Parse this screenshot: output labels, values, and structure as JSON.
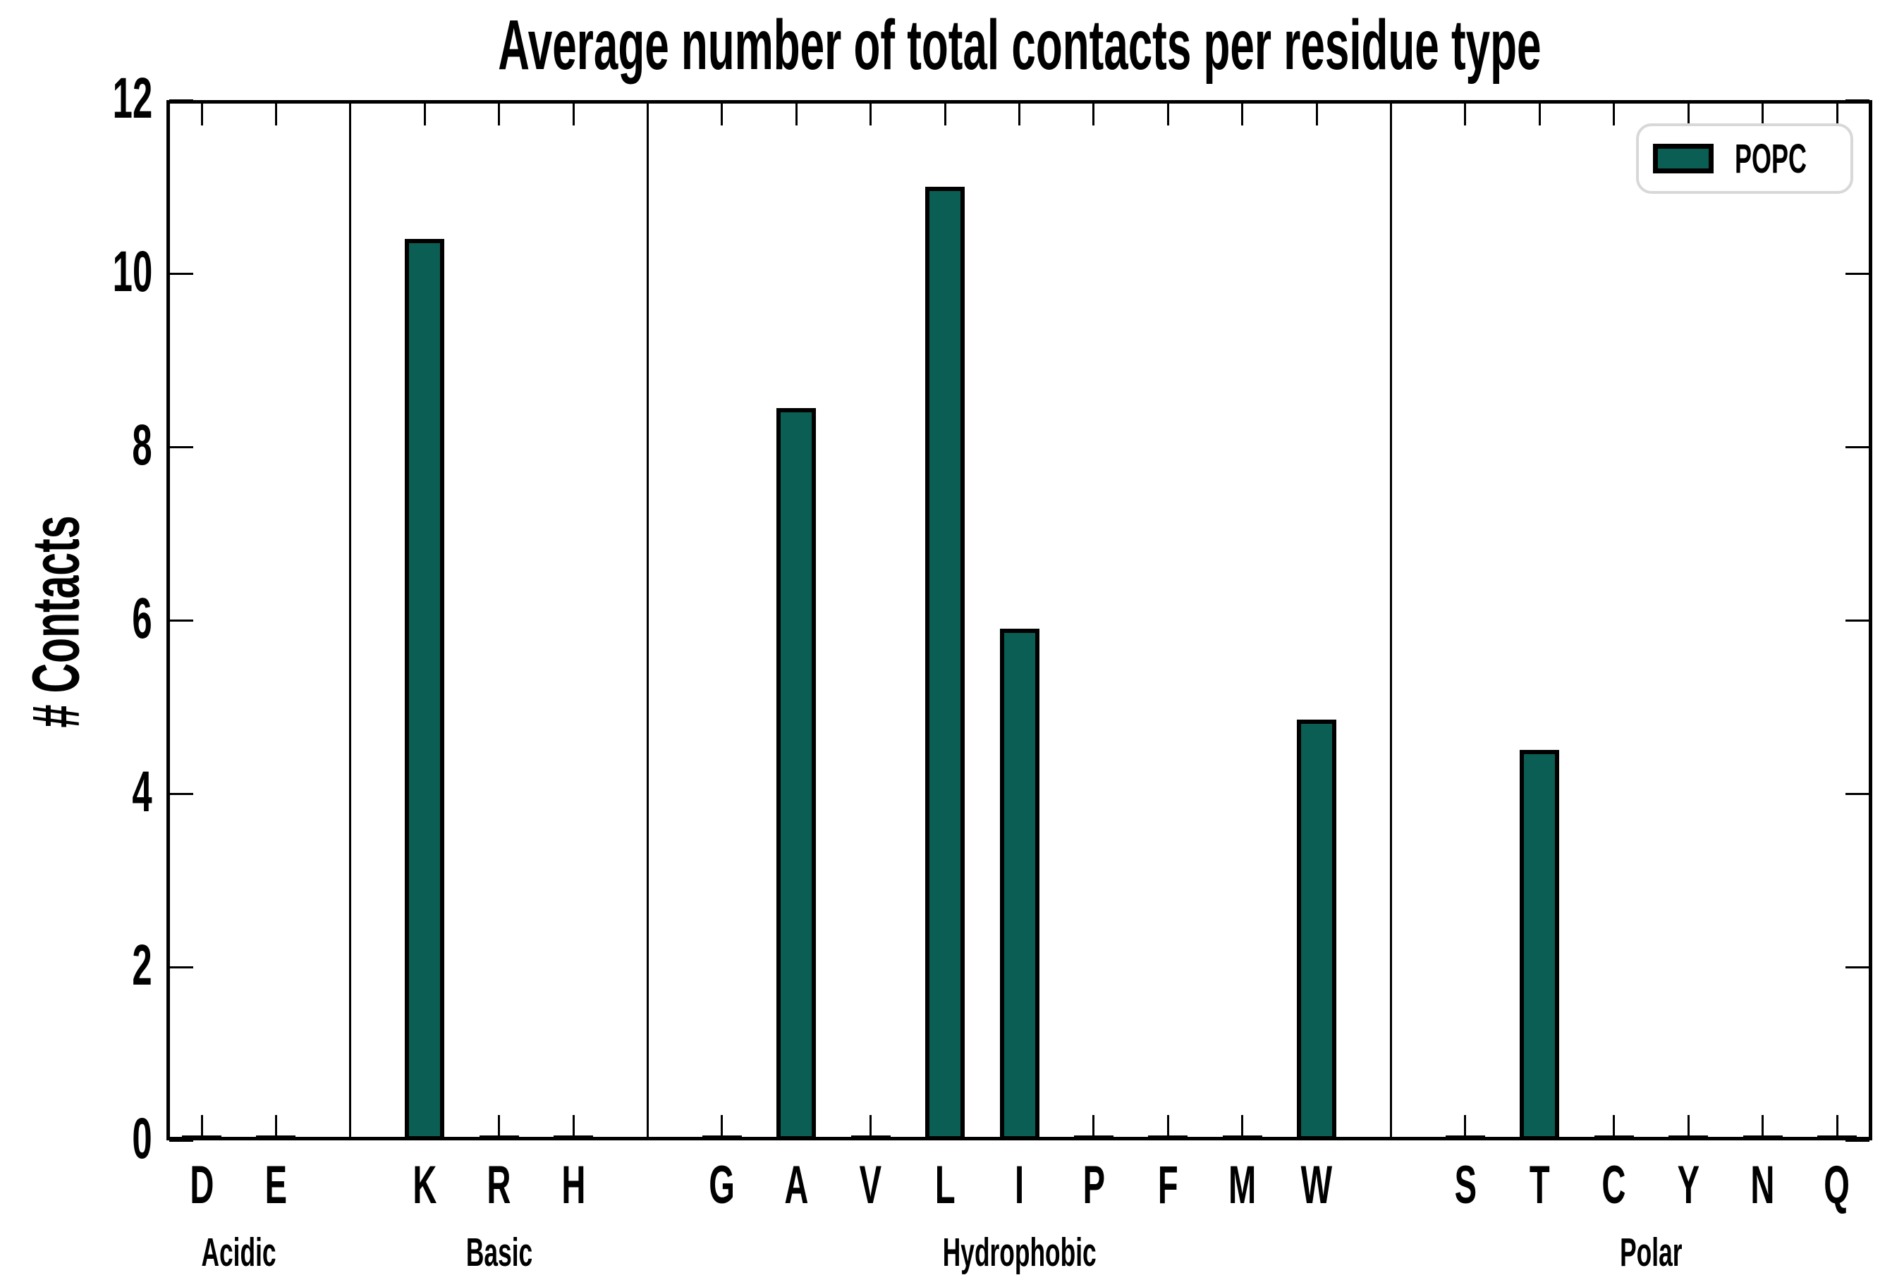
{
  "chart_data": {
    "type": "bar",
    "title": "Average number of total contacts per residue type",
    "ylabel": "# Contacts",
    "xlabel": "",
    "ylim": [
      0,
      12
    ],
    "yticks": [
      0,
      2,
      4,
      6,
      8,
      10,
      12
    ],
    "legend_label": "POPC",
    "legend_position": "upper right",
    "grid": false,
    "bar_color": "#0A5E53",
    "bar_edge_color": "#000000",
    "groups": [
      {
        "label": "Acidic",
        "categories": [
          "D",
          "E"
        ],
        "values": [
          0.02,
          0.02
        ]
      },
      {
        "label": "Basic",
        "categories": [
          "K",
          "R",
          "H"
        ],
        "values": [
          10.4,
          0.02,
          0.02
        ]
      },
      {
        "label": "Hydrophobic",
        "categories": [
          "G",
          "A",
          "V",
          "L",
          "I",
          "P",
          "F",
          "M",
          "W"
        ],
        "values": [
          0.02,
          8.45,
          0.02,
          11.0,
          5.9,
          0.02,
          0.02,
          0.02,
          4.85
        ]
      },
      {
        "label": "Polar",
        "categories": [
          "S",
          "T",
          "C",
          "Y",
          "N",
          "Q"
        ],
        "values": [
          0.02,
          4.5,
          0.02,
          0.02,
          0.02,
          0.02
        ]
      }
    ]
  },
  "colors": {
    "bar_fill": "#0A5E53",
    "bar_edge": "#000000",
    "axis": "#000000",
    "legend_border": "#d8d8d8",
    "background": "#ffffff"
  }
}
